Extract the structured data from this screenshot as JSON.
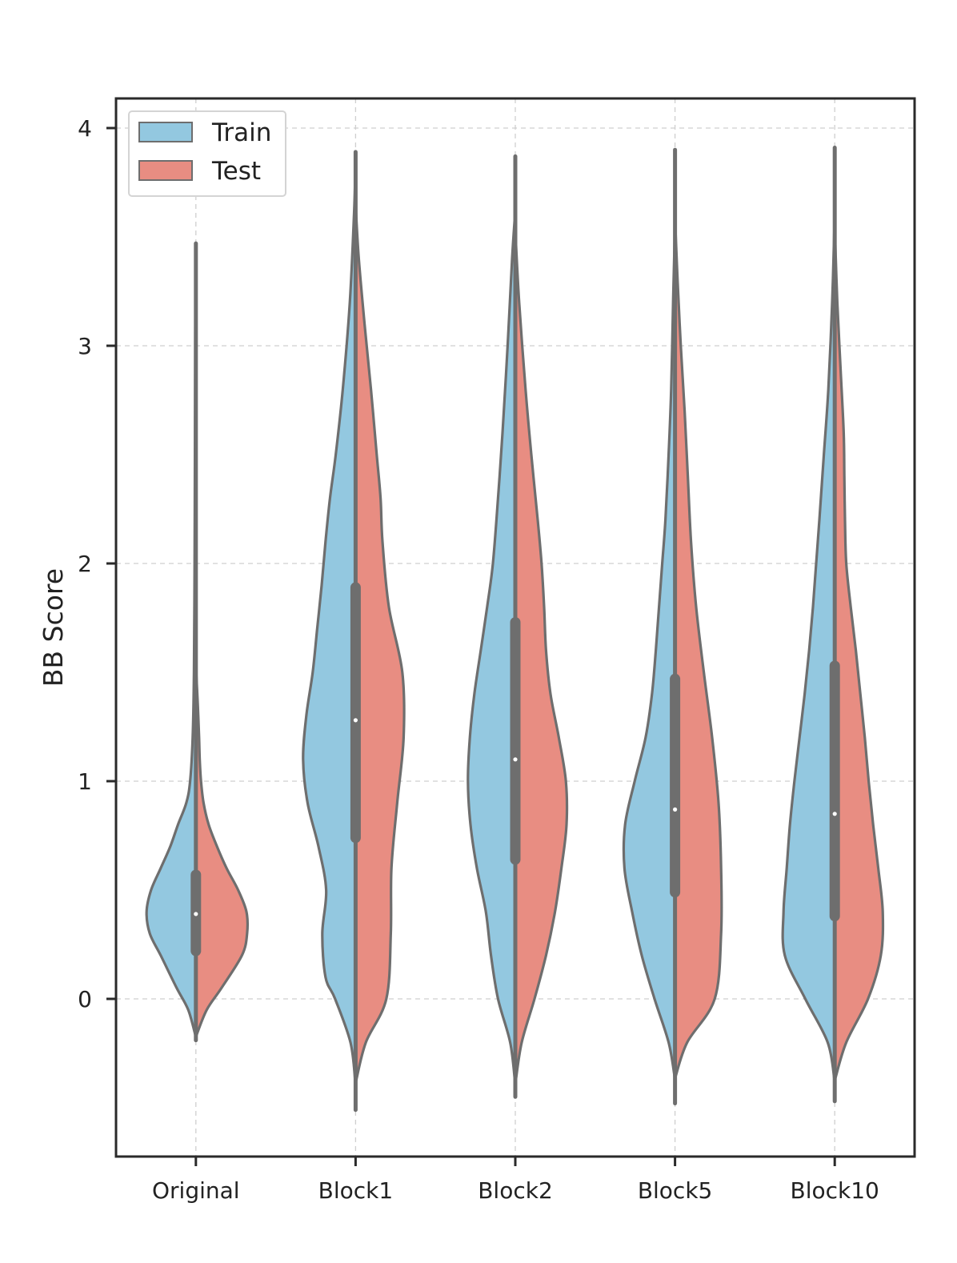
{
  "chart_data": {
    "type": "violin",
    "title": "",
    "xlabel": "",
    "ylabel": "BB Score",
    "ylim": [
      -0.72,
      4.14
    ],
    "yticks": [
      0,
      1,
      2,
      3,
      4
    ],
    "grid": true,
    "legend_position": "top-left",
    "categories": [
      "Original",
      "Block1",
      "Block2",
      "Block5",
      "Block10"
    ],
    "series": [
      {
        "name": "Train",
        "color": "#93c8e0",
        "violins": [
          {
            "y": [
              -0.17,
              -0.05,
              0.05,
              0.2,
              0.3,
              0.4,
              0.5,
              0.6,
              0.7,
              0.8,
              0.9,
              1.0,
              1.2,
              1.5,
              2.0,
              2.5,
              3.0,
              3.47
            ],
            "w": [
              0.005,
              0.12,
              0.3,
              0.55,
              0.72,
              0.77,
              0.7,
              0.55,
              0.4,
              0.28,
              0.15,
              0.09,
              0.05,
              0.03,
              0.02,
              0.015,
              0.01,
              0.005
            ]
          },
          {
            "y": [
              -0.38,
              -0.2,
              0.0,
              0.1,
              0.3,
              0.5,
              0.7,
              0.9,
              1.1,
              1.3,
              1.5,
              1.7,
              1.9,
              2.1,
              2.3,
              2.5,
              2.8,
              3.2,
              3.6,
              3.78
            ],
            "w": [
              0.005,
              0.08,
              0.32,
              0.47,
              0.52,
              0.46,
              0.58,
              0.75,
              0.82,
              0.77,
              0.67,
              0.6,
              0.53,
              0.47,
              0.4,
              0.31,
              0.2,
              0.09,
              0.025,
              0.005
            ]
          },
          {
            "y": [
              -0.38,
              -0.2,
              0.0,
              0.2,
              0.4,
              0.6,
              0.8,
              1.0,
              1.2,
              1.4,
              1.6,
              1.8,
              2.0,
              2.3,
              2.6,
              3.0,
              3.4,
              3.6
            ],
            "w": [
              0.005,
              0.08,
              0.27,
              0.38,
              0.46,
              0.6,
              0.7,
              0.74,
              0.71,
              0.64,
              0.54,
              0.44,
              0.35,
              0.27,
              0.2,
              0.12,
              0.05,
              0.005
            ]
          },
          {
            "y": [
              -0.36,
              -0.2,
              0.0,
              0.2,
              0.4,
              0.6,
              0.8,
              1.0,
              1.2,
              1.4,
              1.6,
              1.8,
              2.0,
              2.2,
              2.5,
              2.8,
              3.2,
              3.5
            ],
            "w": [
              0.005,
              0.1,
              0.32,
              0.52,
              0.67,
              0.79,
              0.78,
              0.63,
              0.46,
              0.36,
              0.3,
              0.25,
              0.2,
              0.15,
              0.1,
              0.06,
              0.03,
              0.005
            ]
          },
          {
            "y": [
              -0.37,
              -0.2,
              0.0,
              0.2,
              0.4,
              0.6,
              0.8,
              1.0,
              1.2,
              1.4,
              1.6,
              1.8,
              2.0,
              2.2,
              2.5,
              2.8,
              3.2,
              3.55
            ],
            "w": [
              0.005,
              0.11,
              0.46,
              0.78,
              0.8,
              0.75,
              0.7,
              0.63,
              0.55,
              0.47,
              0.4,
              0.34,
              0.29,
              0.24,
              0.17,
              0.1,
              0.04,
              0.005
            ]
          }
        ]
      },
      {
        "name": "Test",
        "color": "#e88d82",
        "violins": [
          {
            "y": [
              -0.17,
              -0.05,
              0.05,
              0.2,
              0.3,
              0.4,
              0.5,
              0.6,
              0.7,
              0.8,
              0.9,
              1.0,
              1.1,
              1.2,
              1.35,
              1.5
            ],
            "w": [
              0.005,
              0.17,
              0.4,
              0.72,
              0.8,
              0.79,
              0.66,
              0.48,
              0.33,
              0.2,
              0.12,
              0.08,
              0.06,
              0.05,
              0.03,
              0.005
            ]
          },
          {
            "y": [
              -0.38,
              -0.2,
              0.0,
              0.3,
              0.6,
              0.9,
              1.2,
              1.5,
              1.8,
              2.1,
              2.3,
              2.5,
              2.8,
              3.1,
              3.4,
              3.62
            ],
            "w": [
              0.005,
              0.16,
              0.48,
              0.55,
              0.56,
              0.65,
              0.75,
              0.73,
              0.52,
              0.42,
              0.39,
              0.33,
              0.24,
              0.14,
              0.05,
              0.005
            ]
          },
          {
            "y": [
              -0.38,
              -0.2,
              0.0,
              0.2,
              0.4,
              0.6,
              0.8,
              1.0,
              1.2,
              1.4,
              1.6,
              1.8,
              2.0,
              2.2,
              2.5,
              2.8,
              3.2,
              3.5
            ],
            "w": [
              0.005,
              0.1,
              0.3,
              0.48,
              0.62,
              0.72,
              0.8,
              0.79,
              0.68,
              0.55,
              0.48,
              0.45,
              0.41,
              0.35,
              0.25,
              0.16,
              0.06,
              0.005
            ]
          },
          {
            "y": [
              -0.36,
              -0.2,
              0.0,
              0.3,
              0.6,
              0.9,
              1.2,
              1.5,
              1.8,
              2.1,
              2.4,
              2.7,
              3.0,
              3.3,
              3.55
            ],
            "w": [
              0.005,
              0.19,
              0.62,
              0.72,
              0.72,
              0.68,
              0.58,
              0.45,
              0.33,
              0.25,
              0.2,
              0.15,
              0.09,
              0.04,
              0.005
            ]
          },
          {
            "y": [
              -0.37,
              -0.2,
              0.0,
              0.2,
              0.4,
              0.6,
              0.8,
              1.0,
              1.2,
              1.4,
              1.6,
              1.8,
              2.0,
              2.2,
              2.4,
              2.6,
              2.9,
              3.2,
              3.5
            ],
            "w": [
              0.005,
              0.18,
              0.52,
              0.72,
              0.75,
              0.68,
              0.6,
              0.53,
              0.47,
              0.4,
              0.33,
              0.25,
              0.18,
              0.16,
              0.15,
              0.14,
              0.09,
              0.04,
              0.005
            ]
          }
        ]
      }
    ],
    "whiskers": [
      {
        "min": -0.19,
        "max": 3.47
      },
      {
        "min": -0.51,
        "max": 3.89
      },
      {
        "min": -0.45,
        "max": 3.87
      },
      {
        "min": -0.48,
        "max": 3.9
      },
      {
        "min": -0.47,
        "max": 3.91
      }
    ],
    "quartiles": [
      {
        "q1": 0.22,
        "median": 0.39,
        "q3": 0.57
      },
      {
        "q1": 0.74,
        "median": 1.28,
        "q3": 1.89
      },
      {
        "q1": 0.64,
        "median": 1.1,
        "q3": 1.73
      },
      {
        "q1": 0.49,
        "median": 0.87,
        "q3": 1.47
      },
      {
        "q1": 0.38,
        "median": 0.85,
        "q3": 1.53
      }
    ],
    "colors": {
      "outline": "#6e6e6e",
      "box": "#6e6e6e",
      "median": "#ffffff",
      "grid": "#cfcfcf",
      "frame": "#2a2a2a"
    }
  }
}
